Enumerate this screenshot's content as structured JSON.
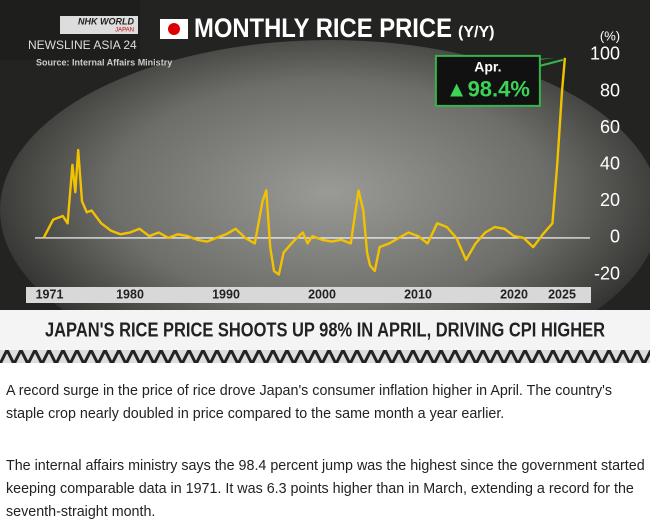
{
  "brand": {
    "name": "NHK WORLD",
    "sub": "JAPAN",
    "program": "NEWSLINE ASIA 24"
  },
  "chart_data": {
    "type": "line",
    "title": "MONTHLY RICE PRICE",
    "subtitle": "(Y/Y)",
    "source": "Source: Internal Affairs Ministry",
    "y_label": "(%)",
    "annotation": "Apr.",
    "x": [
      1971,
      1972,
      1973,
      1973.5,
      1974,
      1974.3,
      1974.6,
      1975,
      1975.5,
      1976,
      1977,
      1978,
      1979,
      1980,
      1981,
      1982,
      1983,
      1984,
      1985,
      1986,
      1987,
      1988,
      1989,
      1990,
      1991,
      1992,
      1993,
      1993.8,
      1994.2,
      1994.6,
      1995,
      1995.5,
      1996,
      1997,
      1998,
      1998.5,
      1999,
      2000,
      2001,
      2002,
      2003,
      2003.8,
      2004.3,
      2004.7,
      2005,
      2005.5,
      2006,
      2007,
      2008,
      2009,
      2010,
      2011,
      2012,
      2013,
      2014,
      2015,
      2016,
      2017,
      2018,
      2019,
      2020,
      2021,
      2022,
      2023,
      2024,
      2024.5,
      2025,
      2025.3
    ],
    "series": [
      {
        "name": "Rice price",
        "color": "#f2c200",
        "values": [
          0,
          10,
          12,
          8,
          40,
          25,
          48,
          20,
          14,
          15,
          8,
          4,
          2,
          3,
          5,
          1,
          3,
          0,
          2,
          1,
          -1,
          -2,
          0,
          2,
          5,
          0,
          -3,
          20,
          26,
          -5,
          -18,
          -20,
          -8,
          -2,
          3,
          -3,
          1,
          -1,
          -2,
          -1,
          -3,
          26,
          15,
          -8,
          -15,
          -18,
          -5,
          -3,
          0,
          3,
          1,
          -3,
          8,
          6,
          0,
          -12,
          -3,
          3,
          6,
          5,
          1,
          0,
          -5,
          2,
          8,
          40,
          80,
          98.4
        ],
        "value_labels": [
          null,
          null,
          null,
          null,
          null,
          null,
          null,
          null,
          null,
          null,
          null,
          null,
          null,
          null,
          null,
          null,
          null,
          null,
          null,
          null,
          null,
          null,
          null,
          null,
          null,
          null,
          null,
          null,
          null,
          null,
          null,
          null,
          null,
          null,
          null,
          null,
          null,
          null,
          null,
          null,
          null,
          null,
          null,
          null,
          null,
          null,
          null,
          null,
          null,
          null,
          null,
          null,
          null,
          null,
          null,
          null,
          null,
          null,
          null,
          null,
          null,
          null,
          null,
          null,
          null,
          null,
          null,
          "▲98.4%"
        ]
      }
    ],
    "xlim": [
      1969,
      2026
    ],
    "xticks": [
      1971,
      1980,
      1990,
      2000,
      2010,
      2020,
      2025
    ],
    "ylim": [
      -25,
      105
    ],
    "yticks": [
      -20,
      0,
      20,
      40,
      60,
      80,
      100
    ]
  },
  "headline": "JAPAN'S RICE PRICE SHOOTS UP 98% IN APRIL, DRIVING CPI HIGHER",
  "article": {
    "paragraphs": [
      "A record surge in the price of rice drove Japan's consumer inflation higher in April. The country's staple crop nearly doubled in price compared to the same month a year earlier.",
      "The internal affairs ministry says the 98.4 percent jump was the highest since the government started keeping comparable data in 1971. It was 6.3 points higher than in March, extending a record for the seventh-straight month."
    ]
  }
}
